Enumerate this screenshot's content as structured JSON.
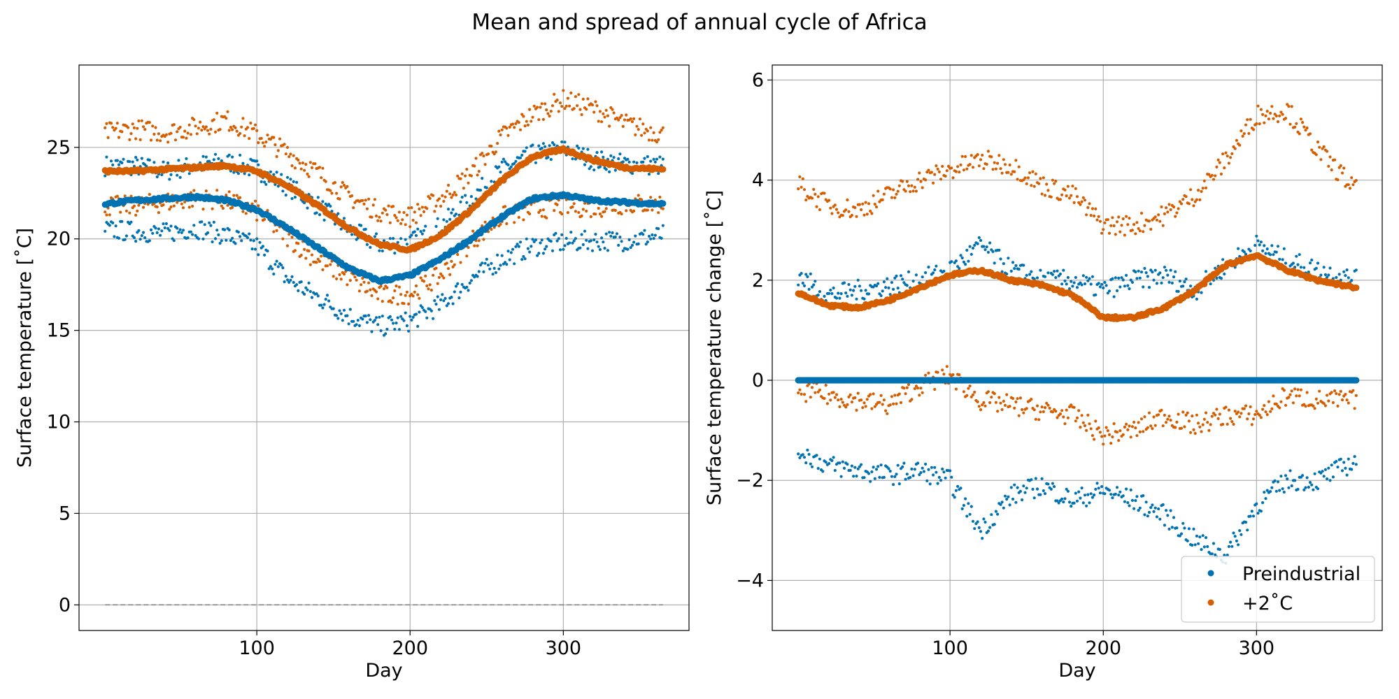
{
  "figure": {
    "title": "Mean and spread of annual cycle of Africa"
  },
  "colors": {
    "preindustrial": "#0072b2",
    "warming": "#d55e00",
    "grid": "#b0b0b0",
    "zero_line": "#808080"
  },
  "chart_data": [
    {
      "type": "scatter",
      "xlabel": "Day",
      "ylabel": "Surface temperature [˚C]",
      "xlim": [
        -16,
        382
      ],
      "ylim": [
        -1.4,
        29.5
      ],
      "xticks": [
        100,
        200,
        300
      ],
      "yticks": [
        0,
        5,
        10,
        15,
        20,
        25
      ],
      "grid": true,
      "reference_line": {
        "y": 0,
        "style": "dashed"
      },
      "x": [
        1,
        20,
        40,
        60,
        80,
        100,
        120,
        140,
        160,
        180,
        200,
        220,
        240,
        260,
        280,
        300,
        320,
        340,
        365
      ],
      "series": [
        {
          "key": "preindustrial",
          "role": "mean",
          "values": [
            21.9,
            22.1,
            22.2,
            22.3,
            22.1,
            21.6,
            20.6,
            19.5,
            18.4,
            17.7,
            18.0,
            18.9,
            20.0,
            21.2,
            22.2,
            22.4,
            22.1,
            22.0,
            21.9
          ]
        },
        {
          "key": "preindustrial",
          "role": "upper",
          "values": [
            24.0,
            24.0,
            23.7,
            24.0,
            24.2,
            23.8,
            22.9,
            21.8,
            20.5,
            19.7,
            19.8,
            20.7,
            22.2,
            23.8,
            24.6,
            24.9,
            24.3,
            24.1,
            24.0
          ]
        },
        {
          "key": "preindustrial",
          "role": "lower",
          "values": [
            20.5,
            20.4,
            20.3,
            20.6,
            20.2,
            19.6,
            17.8,
            16.8,
            15.8,
            15.2,
            15.5,
            16.4,
            17.8,
            18.9,
            19.6,
            19.8,
            19.9,
            19.9,
            20.2
          ]
        },
        {
          "key": "warming",
          "role": "mean",
          "values": [
            23.7,
            23.7,
            23.8,
            23.9,
            24.0,
            23.7,
            22.9,
            21.8,
            20.6,
            19.7,
            19.4,
            20.2,
            21.6,
            23.2,
            24.5,
            24.9,
            24.3,
            23.9,
            23.8
          ]
        },
        {
          "key": "warming",
          "role": "upper",
          "values": [
            25.8,
            26.0,
            25.8,
            26.1,
            26.5,
            25.7,
            24.7,
            23.6,
            22.3,
            21.5,
            21.2,
            22.2,
            23.6,
            25.6,
            26.8,
            27.6,
            27.1,
            26.3,
            25.7
          ]
        },
        {
          "key": "warming",
          "role": "lower",
          "values": [
            21.8,
            21.8,
            22.0,
            22.2,
            22.1,
            21.5,
            20.1,
            18.8,
            17.9,
            16.9,
            17.0,
            18.0,
            19.9,
            21.2,
            21.6,
            21.8,
            21.7,
            21.9,
            21.9
          ]
        }
      ]
    },
    {
      "type": "scatter",
      "xlabel": "Day",
      "ylabel": "Surface temperature change [˚C]",
      "xlim": [
        -16,
        382
      ],
      "ylim": [
        -5.0,
        6.3
      ],
      "xticks": [
        100,
        200,
        300
      ],
      "yticks": [
        -4,
        -2,
        0,
        2,
        4,
        6
      ],
      "grid": true,
      "legend": {
        "placement": "bottom-right",
        "entries": [
          {
            "key": "preindustrial",
            "label": "Preindustrial"
          },
          {
            "key": "warming",
            "label": "+2˚C"
          }
        ]
      },
      "x": [
        1,
        20,
        40,
        60,
        80,
        100,
        120,
        140,
        160,
        180,
        200,
        220,
        240,
        260,
        280,
        300,
        320,
        340,
        365
      ],
      "series": [
        {
          "key": "preindustrial",
          "role": "mean",
          "values": [
            0,
            0,
            0,
            0,
            0,
            0,
            0,
            0,
            0,
            0,
            0,
            0,
            0,
            0,
            0,
            0,
            0,
            0,
            0
          ]
        },
        {
          "key": "preindustrial",
          "role": "upper",
          "values": [
            2.1,
            1.7,
            1.8,
            1.9,
            2.0,
            2.2,
            2.7,
            2.2,
            2.0,
            2.0,
            1.8,
            2.0,
            2.1,
            1.8,
            2.3,
            2.7,
            2.4,
            2.2,
            2.0
          ]
        },
        {
          "key": "preindustrial",
          "role": "lower",
          "values": [
            -1.4,
            -1.7,
            -1.8,
            -1.9,
            -1.8,
            -2.0,
            -3.0,
            -2.3,
            -2.1,
            -2.4,
            -2.2,
            -2.4,
            -2.7,
            -3.2,
            -3.5,
            -2.5,
            -2.0,
            -2.0,
            -1.6
          ]
        },
        {
          "key": "warming",
          "role": "mean",
          "values": [
            1.75,
            1.5,
            1.45,
            1.6,
            1.85,
            2.1,
            2.2,
            2.0,
            1.9,
            1.7,
            1.25,
            1.25,
            1.45,
            1.8,
            2.3,
            2.5,
            2.2,
            2.0,
            1.85
          ]
        },
        {
          "key": "warming",
          "role": "upper",
          "values": [
            3.9,
            3.5,
            3.4,
            3.7,
            4.0,
            4.2,
            4.4,
            4.3,
            3.9,
            3.7,
            3.1,
            3.1,
            3.3,
            3.7,
            4.4,
            5.3,
            5.4,
            4.6,
            3.8
          ]
        },
        {
          "key": "warming",
          "role": "lower",
          "values": [
            -0.2,
            -0.3,
            -0.4,
            -0.5,
            -0.1,
            0.1,
            -0.4,
            -0.5,
            -0.6,
            -0.7,
            -1.1,
            -1.0,
            -0.7,
            -0.9,
            -0.7,
            -0.7,
            -0.3,
            -0.4,
            -0.4
          ]
        }
      ]
    }
  ]
}
